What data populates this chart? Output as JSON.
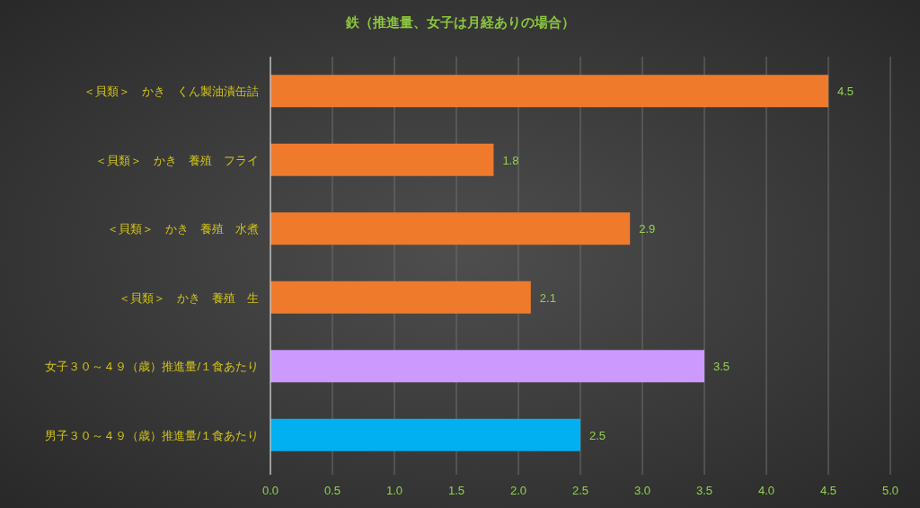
{
  "chart_data": {
    "type": "bar",
    "orientation": "horizontal",
    "title": "鉄（推進量、女子は月経ありの場合）",
    "categories": [
      "＜貝類＞　かき　くん製油漬缶詰",
      "＜貝類＞　かき　養殖　フライ",
      "＜貝類＞　かき　養殖　水煮",
      "＜貝類＞　かき　養殖　生",
      "女子３０～４９（歳）推進量/１食あたり",
      "男子３０～４９（歳）推進量/１食あたり"
    ],
    "values": [
      4.5,
      1.8,
      2.9,
      2.1,
      3.5,
      2.5
    ],
    "colors": [
      "#f07a2c",
      "#f07a2c",
      "#f07a2c",
      "#f07a2c",
      "#cc99ff",
      "#00b0f0"
    ],
    "xlim": [
      0,
      5
    ],
    "xticks": [
      {
        "value": 0,
        "label": "0.0"
      },
      0.5,
      {
        "value": 1,
        "label": "1.0"
      },
      1.5,
      {
        "value": 2,
        "label": "2.0"
      },
      2.5,
      {
        "value": 3,
        "label": "3.0"
      },
      3.5,
      {
        "value": 4,
        "label": "4.0"
      },
      4.5,
      {
        "value": 5,
        "label": "5.0"
      }
    ],
    "grid": "x",
    "data_labels": true
  }
}
